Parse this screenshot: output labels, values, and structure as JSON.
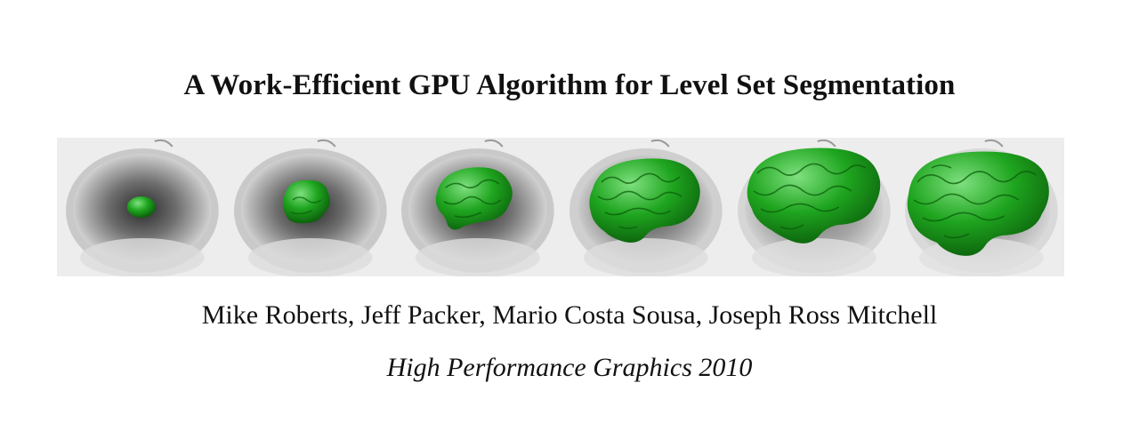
{
  "paper": {
    "title": "A Work-Efficient GPU Algorithm for Level Set Segmentation",
    "authors": "Mike Roberts, Jeff Packer, Mario Costa Sousa, Joseph Ross Mitchell",
    "venue": "High Performance Graphics 2010"
  },
  "figure": {
    "panels": [
      {
        "name": "seed-sphere-stage"
      },
      {
        "name": "early-growth-stage"
      },
      {
        "name": "partial-brain-stage"
      },
      {
        "name": "mid-growth-stage"
      },
      {
        "name": "late-growth-stage"
      },
      {
        "name": "full-brain-stage"
      }
    ],
    "colors": {
      "segmentation": "#1fa51f",
      "segmentation_highlight": "#7fe07f",
      "segmentation_shadow": "#0b5e0b",
      "volume_background": "#ececec"
    }
  }
}
